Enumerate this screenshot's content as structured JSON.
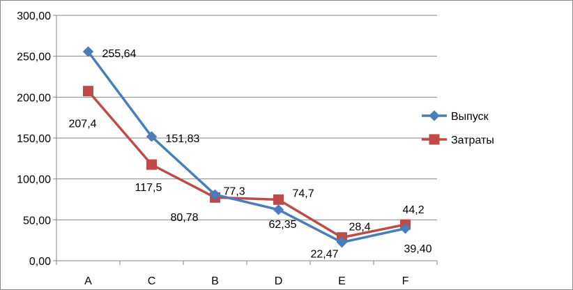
{
  "chart_data": {
    "type": "line",
    "categories": [
      "A",
      "C",
      "B",
      "D",
      "E",
      "F"
    ],
    "ylim": [
      0,
      300
    ],
    "y_ticks": [
      "0,00",
      "50,00",
      "100,00",
      "150,00",
      "200,00",
      "250,00",
      "300,00"
    ],
    "y_tick_values": [
      0,
      50,
      100,
      150,
      200,
      250,
      300
    ],
    "grid": "horizontal",
    "legend_position": "right",
    "series": [
      {
        "name": "Выпуск",
        "color": "#4a7ebb",
        "marker": "diamond",
        "values": [
          255.64,
          151.83,
          80.78,
          62.35,
          22.47,
          39.4
        ],
        "labels": [
          "255,64",
          "151,83",
          "80,78",
          "62,35",
          "22,47",
          "39,40"
        ]
      },
      {
        "name": "Затраты",
        "color": "#be4b48",
        "marker": "square",
        "values": [
          207.4,
          117.5,
          77.3,
          74.7,
          28.4,
          44.2
        ],
        "labels": [
          "207,4",
          "117,5",
          "77,3",
          "74,7",
          "28,4",
          "44,2"
        ]
      }
    ]
  }
}
